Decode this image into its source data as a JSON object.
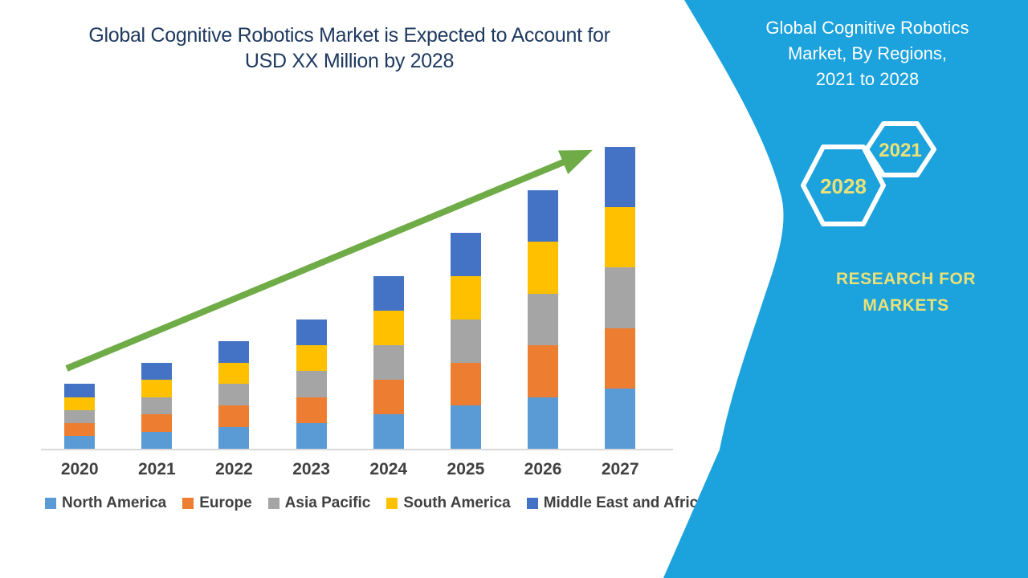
{
  "main": {
    "title_lines": [
      "Global Cognitive Robotics Market is Expected to Account for",
      "USD XX Million by 2028"
    ]
  },
  "chart_data": {
    "type": "bar",
    "stacked": true,
    "title": "Global Cognitive Robotics Market is Expected to Account for USD XX Million by 2028",
    "xlabel": "",
    "ylabel": "",
    "y_axis_shown": false,
    "grid": false,
    "legend_position": "bottom",
    "categories": [
      "2020",
      "2021",
      "2022",
      "2023",
      "2024",
      "2025",
      "2026",
      "2027"
    ],
    "series": [
      {
        "name": "North America",
        "color": "#5B9BD5",
        "values": [
          0.6,
          0.8,
          1.0,
          1.2,
          1.6,
          2.0,
          2.4,
          2.8
        ]
      },
      {
        "name": "Europe",
        "color": "#ED7D31",
        "values": [
          0.6,
          0.8,
          1.0,
          1.2,
          1.6,
          2.0,
          2.4,
          2.8
        ]
      },
      {
        "name": "Asia Pacific",
        "color": "#A5A5A5",
        "values": [
          0.6,
          0.8,
          1.0,
          1.2,
          1.6,
          2.0,
          2.4,
          2.8
        ]
      },
      {
        "name": "South America",
        "color": "#FFC000",
        "values": [
          0.6,
          0.8,
          1.0,
          1.2,
          1.6,
          2.0,
          2.4,
          2.8
        ]
      },
      {
        "name": "Middle East and Africa",
        "color": "#4472C4",
        "values": [
          0.6,
          0.8,
          1.0,
          1.2,
          1.6,
          2.0,
          2.4,
          2.8
        ]
      }
    ],
    "stack_totals": [
      3,
      4,
      5,
      6,
      8,
      10,
      12,
      14
    ],
    "values_note": "No numeric axis is shown (values masked as 'USD XX Million'); series values are relative units estimated from bar heights, all five regions equal per year",
    "annotations": [
      "green upward trend arrow from 2020 bar to 2027 bar"
    ]
  },
  "right_panel": {
    "title_lines": [
      "Global Cognitive Robotics",
      "Market, By Regions,",
      "2021 to 2028"
    ],
    "hexagons": [
      {
        "label": "2028"
      },
      {
        "label": "2021"
      }
    ],
    "brand_lines": [
      "RESEARCH FOR",
      "MARKETS"
    ],
    "colors": {
      "background": "#1CA2DC",
      "text": "#FFFFFF",
      "accent": "#EAE178"
    }
  },
  "colors": {
    "arrow": "#6FAC47",
    "axis_line": "#D9D9D9",
    "axis_text": "#404040",
    "title_text": "#1F3A60"
  }
}
